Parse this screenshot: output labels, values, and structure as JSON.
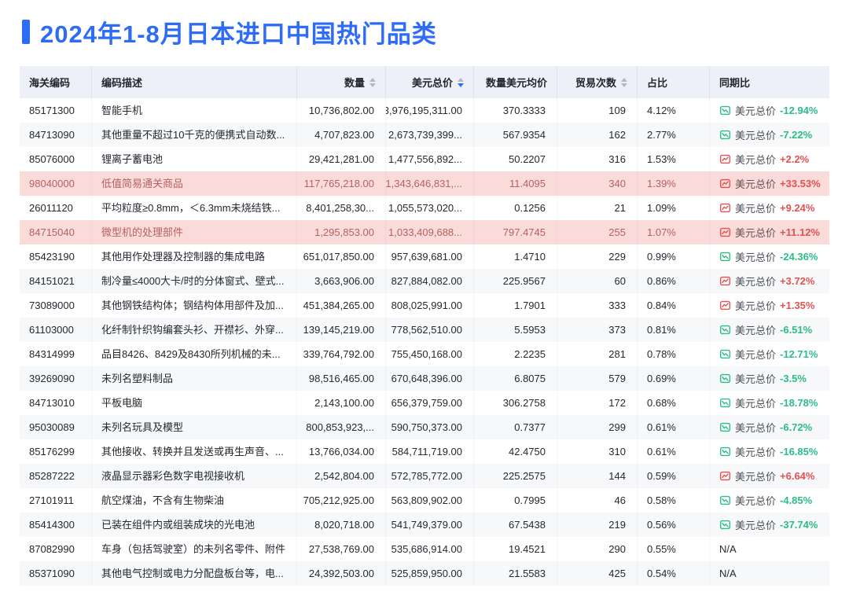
{
  "page": {
    "title": "2024年1-8月日本进口中国热门品类"
  },
  "colors": {
    "accent": "#2e6bf6",
    "trend_up_red": "#e25252",
    "trend_down_green": "#2cbd85",
    "highlight_row_bg": "#f9dbd9",
    "highlight_row_text": "#b85f5f",
    "header_bg": "#eef0f8"
  },
  "table": {
    "na_label": "N/A",
    "columns": [
      {
        "key": "code",
        "label": "海关编码",
        "align": "left",
        "sortable": false,
        "sort": null
      },
      {
        "key": "desc",
        "label": "编码描述",
        "align": "left",
        "sortable": false,
        "sort": null
      },
      {
        "key": "qty",
        "label": "数量",
        "align": "right",
        "sortable": true,
        "sort": null
      },
      {
        "key": "usd",
        "label": "美元总价",
        "align": "right",
        "sortable": true,
        "sort": "desc"
      },
      {
        "key": "avg",
        "label": "数量美元均价",
        "align": "right",
        "sortable": false,
        "sort": null
      },
      {
        "key": "trades",
        "label": "贸易次数",
        "align": "right",
        "sortable": true,
        "sort": null
      },
      {
        "key": "share",
        "label": "占比",
        "align": "left",
        "sortable": false,
        "sort": null
      },
      {
        "key": "yoy",
        "label": "同期比",
        "align": "left",
        "sortable": false,
        "sort": null
      }
    ],
    "rows": [
      {
        "code": "85171300",
        "desc": "智能手机",
        "qty": "10,736,802.00",
        "usd": "3,976,195,311.00",
        "avg": "370.3333",
        "trades": "109",
        "share": "4.12%",
        "highlight": false,
        "yoy": {
          "label": "美元总价",
          "value": "-12.94%",
          "trend": "down"
        }
      },
      {
        "code": "84713090",
        "desc": "其他重量不超过10千克的便携式自动数...",
        "qty": "4,707,823.00",
        "usd": "2,673,739,399...",
        "avg": "567.9354",
        "trades": "162",
        "share": "2.77%",
        "highlight": false,
        "yoy": {
          "label": "美元总价",
          "value": "-7.22%",
          "trend": "down"
        }
      },
      {
        "code": "85076000",
        "desc": "锂离子蓄电池",
        "qty": "29,421,281.00",
        "usd": "1,477,556,892...",
        "avg": "50.2207",
        "trades": "316",
        "share": "1.53%",
        "highlight": false,
        "yoy": {
          "label": "美元总价",
          "value": "+2.2%",
          "trend": "up"
        }
      },
      {
        "code": "98040000",
        "desc": "低值简易通关商品",
        "qty": "117,765,218.00",
        "usd": "1,343,646,831,...",
        "avg": "11.4095",
        "trades": "340",
        "share": "1.39%",
        "highlight": true,
        "yoy": {
          "label": "美元总价",
          "value": "+33.53%",
          "trend": "up"
        }
      },
      {
        "code": "26011120",
        "desc": "平均粒度≥0.8mm，＜6.3mm未烧结铁...",
        "qty": "8,401,258,30...",
        "usd": "1,055,573,020...",
        "avg": "0.1256",
        "trades": "21",
        "share": "1.09%",
        "highlight": false,
        "yoy": {
          "label": "美元总价",
          "value": "+9.24%",
          "trend": "up"
        }
      },
      {
        "code": "84715040",
        "desc": "微型机的处理部件",
        "qty": "1,295,853.00",
        "usd": "1,033,409,688...",
        "avg": "797.4745",
        "trades": "255",
        "share": "1.07%",
        "highlight": true,
        "yoy": {
          "label": "美元总价",
          "value": "+11.12%",
          "trend": "up"
        }
      },
      {
        "code": "85423190",
        "desc": "其他用作处理器及控制器的集成电路",
        "qty": "651,017,850.00",
        "usd": "957,639,681.00",
        "avg": "1.4710",
        "trades": "229",
        "share": "0.99%",
        "highlight": false,
        "yoy": {
          "label": "美元总价",
          "value": "-24.36%",
          "trend": "down"
        }
      },
      {
        "code": "84151021",
        "desc": "制冷量≤4000大卡/时的分体窗式、壁式...",
        "qty": "3,663,906.00",
        "usd": "827,884,082.00",
        "avg": "225.9567",
        "trades": "60",
        "share": "0.86%",
        "highlight": false,
        "yoy": {
          "label": "美元总价",
          "value": "+3.72%",
          "trend": "up"
        }
      },
      {
        "code": "73089000",
        "desc": "其他钢铁结构体；钢结构体用部件及加...",
        "qty": "451,384,265.00",
        "usd": "808,025,991.00",
        "avg": "1.7901",
        "trades": "333",
        "share": "0.84%",
        "highlight": false,
        "yoy": {
          "label": "美元总价",
          "value": "+1.35%",
          "trend": "up"
        }
      },
      {
        "code": "61103000",
        "desc": "化纤制针织钩编套头衫、开襟衫、外穿...",
        "qty": "139,145,219.00",
        "usd": "778,562,510.00",
        "avg": "5.5953",
        "trades": "373",
        "share": "0.81%",
        "highlight": false,
        "yoy": {
          "label": "美元总价",
          "value": "-6.51%",
          "trend": "down"
        }
      },
      {
        "code": "84314999",
        "desc": "品目8426、8429及8430所列机械的未...",
        "qty": "339,764,792.00",
        "usd": "755,450,168.00",
        "avg": "2.2235",
        "trades": "281",
        "share": "0.78%",
        "highlight": false,
        "yoy": {
          "label": "美元总价",
          "value": "-12.71%",
          "trend": "down"
        }
      },
      {
        "code": "39269090",
        "desc": "未列名塑料制品",
        "qty": "98,516,465.00",
        "usd": "670,648,396.00",
        "avg": "6.8075",
        "trades": "579",
        "share": "0.69%",
        "highlight": false,
        "yoy": {
          "label": "美元总价",
          "value": "-3.5%",
          "trend": "down"
        }
      },
      {
        "code": "84713010",
        "desc": "平板电脑",
        "qty": "2,143,100.00",
        "usd": "656,379,759.00",
        "avg": "306.2758",
        "trades": "172",
        "share": "0.68%",
        "highlight": false,
        "yoy": {
          "label": "美元总价",
          "value": "-18.78%",
          "trend": "down"
        }
      },
      {
        "code": "95030089",
        "desc": "未列名玩具及模型",
        "qty": "800,853,923,...",
        "usd": "590,750,373.00",
        "avg": "0.7377",
        "trades": "299",
        "share": "0.61%",
        "highlight": false,
        "yoy": {
          "label": "美元总价",
          "value": "-6.72%",
          "trend": "down"
        }
      },
      {
        "code": "85176299",
        "desc": "其他接收、转换并且发送或再生声音、...",
        "qty": "13,766,034.00",
        "usd": "584,711,719.00",
        "avg": "42.4750",
        "trades": "310",
        "share": "0.61%",
        "highlight": false,
        "yoy": {
          "label": "美元总价",
          "value": "-16.85%",
          "trend": "down"
        }
      },
      {
        "code": "85287222",
        "desc": "液晶显示器彩色数字电视接收机",
        "qty": "2,542,804.00",
        "usd": "572,785,772.00",
        "avg": "225.2575",
        "trades": "144",
        "share": "0.59%",
        "highlight": false,
        "yoy": {
          "label": "美元总价",
          "value": "+6.64%",
          "trend": "up"
        }
      },
      {
        "code": "27101911",
        "desc": "航空煤油，不含有生物柴油",
        "qty": "705,212,925.00",
        "usd": "563,809,902.00",
        "avg": "0.7995",
        "trades": "46",
        "share": "0.58%",
        "highlight": false,
        "yoy": {
          "label": "美元总价",
          "value": "-4.85%",
          "trend": "down"
        }
      },
      {
        "code": "85414300",
        "desc": "已装在组件内或组装成块的光电池",
        "qty": "8,020,718.00",
        "usd": "541,749,379.00",
        "avg": "67.5438",
        "trades": "219",
        "share": "0.56%",
        "highlight": false,
        "yoy": {
          "label": "美元总价",
          "value": "-37.74%",
          "trend": "down"
        }
      },
      {
        "code": "87082990",
        "desc": "车身（包括驾驶室）的未列名零件、附件",
        "qty": "27,538,769.00",
        "usd": "535,686,914.00",
        "avg": "19.4521",
        "trades": "290",
        "share": "0.55%",
        "highlight": false,
        "yoy": null
      },
      {
        "code": "85371090",
        "desc": "其他电气控制或电力分配盘板台等，电...",
        "qty": "24,392,503.00",
        "usd": "525,859,950.00",
        "avg": "21.5583",
        "trades": "425",
        "share": "0.54%",
        "highlight": false,
        "yoy": null
      }
    ]
  }
}
